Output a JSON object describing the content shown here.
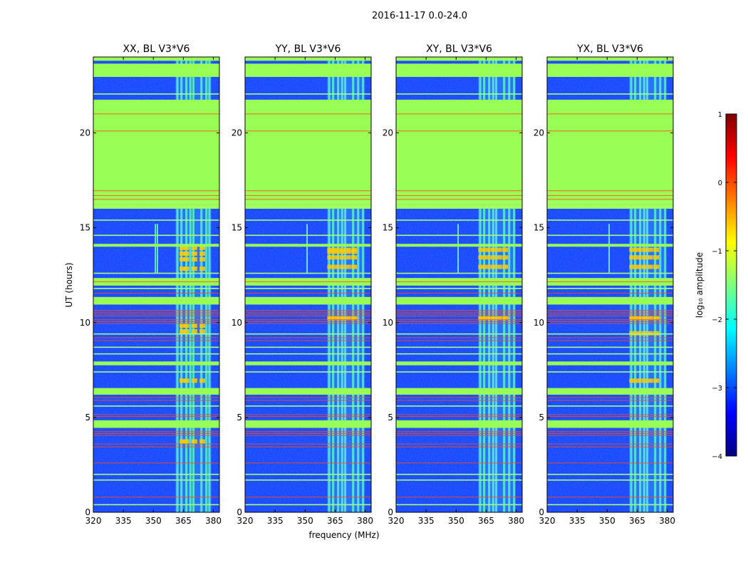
{
  "chart_data": {
    "type": "heatmap",
    "suptitle": "2016-11-17 0.0-24.0",
    "xlabel": "frequency (MHz)",
    "ylabel": "UT (hours)",
    "xlim": [
      320,
      383
    ],
    "ylim": [
      0,
      24
    ],
    "xticks": [
      320,
      335,
      350,
      365,
      380
    ],
    "yticks": [
      0,
      5,
      10,
      15,
      20
    ],
    "colorbar": {
      "label": "log₁₀ amplitude",
      "range": [
        -4,
        1
      ],
      "ticks": [
        1,
        0,
        -1,
        -2,
        -3,
        -4
      ],
      "tick_labels": [
        "1",
        "0",
        "−1",
        "−2",
        "−3",
        "−4"
      ],
      "colormap": "jet",
      "stops": [
        "#00007f",
        "#0000ff",
        "#007fff",
        "#00ffff",
        "#7fff7f",
        "#ffff00",
        "#ff7f00",
        "#ff0000",
        "#7f0000"
      ]
    },
    "flag_color": "#99ff55",
    "noise_color": "#1a3cff",
    "rfi_band_mhz": [
      361,
      379
    ],
    "flagged_intervals_hours": [
      [
        4.45,
        4.85
      ],
      [
        6.2,
        6.55
      ],
      [
        7.75,
        7.95
      ],
      [
        10.95,
        11.35
      ],
      [
        11.95,
        12.35
      ],
      [
        14.0,
        14.15
      ],
      [
        16.0,
        21.75
      ],
      [
        22.95,
        23.65
      ],
      [
        23.8,
        24.0
      ]
    ],
    "red_line_hours": [
      0.8,
      2.6,
      3.45,
      3.6,
      4.05,
      4.15,
      4.25,
      5.05,
      5.15,
      5.9,
      6.05,
      9.05,
      9.2,
      9.95,
      10.05,
      10.15,
      10.35,
      10.45,
      10.55,
      10.65,
      11.55,
      12.15,
      20.1,
      21.0,
      16.5,
      16.7,
      16.95
    ],
    "panels": [
      {
        "title": "XX, BL V3*V6",
        "rfi_spikes_mhz": [
          351,
          352
        ],
        "rfi_columns_mhz": [
          362,
          364,
          366.5,
          368.5,
          370,
          374,
          376.5,
          378
        ],
        "hot_rows_hours": [
          9.5,
          9.8,
          12.8,
          13.3,
          13.6,
          13.9,
          6.9,
          3.7
        ],
        "hot_cols_mhz": [
          364.5,
          366.5,
          370.5,
          374.5
        ]
      },
      {
        "title": "YY, BL V3*V6",
        "rfi_spikes_mhz": [
          351
        ],
        "rfi_columns_mhz": [
          362,
          364,
          366.5,
          368.5,
          370,
          374,
          376.5,
          379
        ],
        "hot_rows_hours": [
          12.9,
          13.4,
          13.8,
          13.7,
          10.2
        ],
        "hot_cols_mhz": [
          362.5,
          365.5,
          368.5,
          371.5,
          374.5
        ]
      },
      {
        "title": "XY, BL V3*V6",
        "rfi_spikes_mhz": [
          351
        ],
        "rfi_columns_mhz": [
          362,
          364,
          366.5,
          368.5,
          370,
          374,
          376.5,
          379
        ],
        "hot_rows_hours": [
          13.8,
          13.4,
          12.9,
          10.2
        ],
        "hot_cols_mhz": [
          362.5,
          365.5,
          368.5,
          371.5,
          374.5
        ]
      },
      {
        "title": "YX, BL V3*V6",
        "rfi_spikes_mhz": [
          351
        ],
        "rfi_columns_mhz": [
          362,
          364,
          366.5,
          368.5,
          370,
          374,
          376.5,
          379
        ],
        "hot_rows_hours": [
          13.8,
          13.4,
          12.9,
          10.2,
          9.4,
          6.9
        ],
        "hot_cols_mhz": [
          362.5,
          365.5,
          368.5,
          371.5,
          374.5
        ]
      }
    ]
  }
}
